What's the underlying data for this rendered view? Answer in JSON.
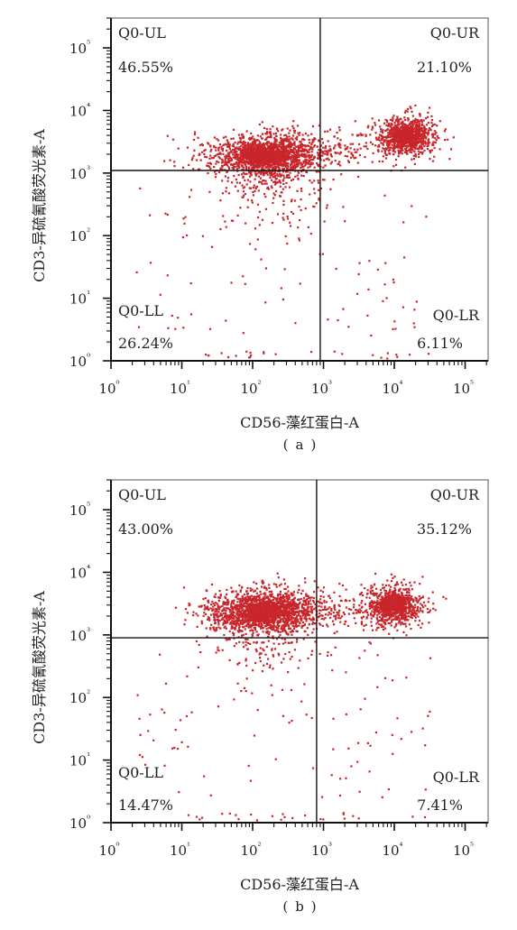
{
  "y_axis_label": "CD3-异硫氰酸荧光素-A",
  "x_axis_label": "CD56-藻红蛋白-A",
  "tick_labels": [
    "10⁰",
    "10¹",
    "10²",
    "10³",
    "10⁴",
    "10⁵"
  ],
  "point_color": "#c8262b",
  "chart_data": [
    {
      "type": "scatter",
      "caption": "a",
      "xlabel": "CD56-藻红蛋白-A",
      "ylabel": "CD3-异硫氰酸荧光素-A",
      "x_scale": "log",
      "y_scale": "log",
      "xlim": [
        1,
        300000
      ],
      "ylim": [
        1,
        300000
      ],
      "gates": {
        "x": 900,
        "y": 1100
      },
      "quadrants": [
        {
          "name": "Q0-UL",
          "percent": "46.55%"
        },
        {
          "name": "Q0-UR",
          "percent": "21.10%"
        },
        {
          "name": "Q0-LL",
          "percent": "26.24%"
        },
        {
          "name": "Q0-LR",
          "percent": "6.11%"
        }
      ],
      "clusters": [
        {
          "center_x": 150,
          "center_y": 2000,
          "note": "dense cluster, upper-left quadrant"
        },
        {
          "center_x": 15000,
          "center_y": 4000,
          "note": "dense cluster, upper-right quadrant"
        }
      ]
    },
    {
      "type": "scatter",
      "caption": "b",
      "xlabel": "CD56-藻红蛋白-A",
      "ylabel": "CD3-异硫氰酸荧光素-A",
      "x_scale": "log",
      "y_scale": "log",
      "xlim": [
        1,
        300000
      ],
      "ylim": [
        1,
        300000
      ],
      "gates": {
        "x": 800,
        "y": 900
      },
      "quadrants": [
        {
          "name": "Q0-UL",
          "percent": "43.00%"
        },
        {
          "name": "Q0-UR",
          "percent": "35.12%"
        },
        {
          "name": "Q0-LL",
          "percent": "14.47%"
        },
        {
          "name": "Q0-LR",
          "percent": "7.41%"
        }
      ],
      "clusters": [
        {
          "center_x": 140,
          "center_y": 2500,
          "note": "dense cluster, upper-left quadrant"
        },
        {
          "center_x": 10000,
          "center_y": 3000,
          "note": "dense cluster, upper-right quadrant"
        }
      ]
    }
  ]
}
